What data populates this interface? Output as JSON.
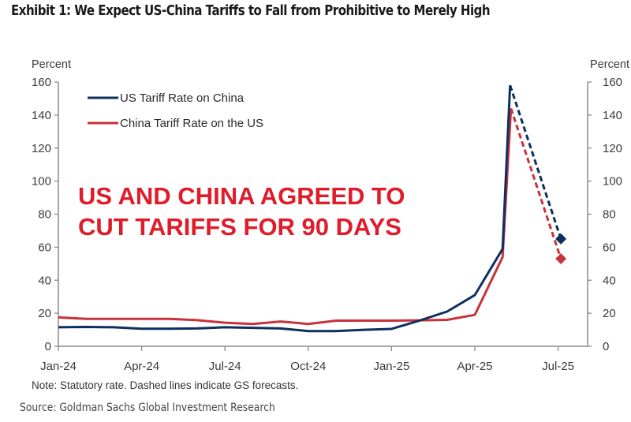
{
  "chart_data": {
    "type": "line",
    "title": "Exhibit 1: We Expect US-China Tariffs to Fall from Prohibitive to Merely High",
    "ylabel_left": "Percent",
    "ylabel_right": "Percent",
    "ylim": [
      0,
      160
    ],
    "yticks": [
      0,
      20,
      40,
      60,
      80,
      100,
      120,
      140,
      160
    ],
    "xlabel": "",
    "x_ticks": [
      {
        "label": "Jan-24",
        "month": 0
      },
      {
        "label": "Apr-24",
        "month": 3
      },
      {
        "label": "Jul-24",
        "month": 6
      },
      {
        "label": "Oct-24",
        "month": 9
      },
      {
        "label": "Jan-25",
        "month": 12
      },
      {
        "label": "Apr-25",
        "month": 15
      },
      {
        "label": "Jul-25",
        "month": 18
      }
    ],
    "xlim_months": [
      0,
      19.3
    ],
    "grid": false,
    "legend_placement": "top-left",
    "series": [
      {
        "name": "US Tariff Rate on China",
        "color": "#0d2f5e",
        "actual": [
          [
            0,
            11.5
          ],
          [
            1,
            11.7
          ],
          [
            2,
            11.5
          ],
          [
            3,
            10.6
          ],
          [
            4,
            10.6
          ],
          [
            5,
            10.8
          ],
          [
            6,
            11.5
          ],
          [
            7,
            11.2
          ],
          [
            8,
            10.8
          ],
          [
            9,
            9.2
          ],
          [
            10,
            9.2
          ],
          [
            11,
            10.0
          ],
          [
            12,
            10.5
          ],
          [
            13,
            15.5
          ],
          [
            14,
            21.0
          ],
          [
            15,
            31.0
          ],
          [
            16,
            59.0
          ],
          [
            16.27,
            158
          ]
        ],
        "forecast": [
          [
            16.27,
            158
          ],
          [
            18.1,
            65
          ]
        ],
        "forecast_marker": "diamond"
      },
      {
        "name": "China Tariff Rate on the US",
        "color": "#c8323a",
        "actual": [
          [
            0,
            17.5
          ],
          [
            1,
            16.6
          ],
          [
            2,
            16.6
          ],
          [
            3,
            16.6
          ],
          [
            4,
            16.6
          ],
          [
            5,
            15.8
          ],
          [
            6,
            14.3
          ],
          [
            7,
            13.5
          ],
          [
            8,
            15.0
          ],
          [
            9,
            13.5
          ],
          [
            10,
            15.5
          ],
          [
            11,
            15.5
          ],
          [
            12,
            15.5
          ],
          [
            13,
            15.7
          ],
          [
            14,
            16.0
          ],
          [
            15,
            19.0
          ],
          [
            16,
            54.0
          ],
          [
            16.3,
            144
          ]
        ],
        "forecast": [
          [
            16.3,
            144
          ],
          [
            18.1,
            53
          ]
        ],
        "forecast_marker": "diamond"
      }
    ],
    "annotation": {
      "lines": [
        "US AND CHINA AGREED TO",
        "CUT TARIFFS FOR 90 DAYS"
      ],
      "color": "#e01b2a"
    },
    "note": "Note: Statutory rate. Dashed lines indicate GS forecasts.",
    "source": "Source: Goldman Sachs Global Investment Research"
  }
}
